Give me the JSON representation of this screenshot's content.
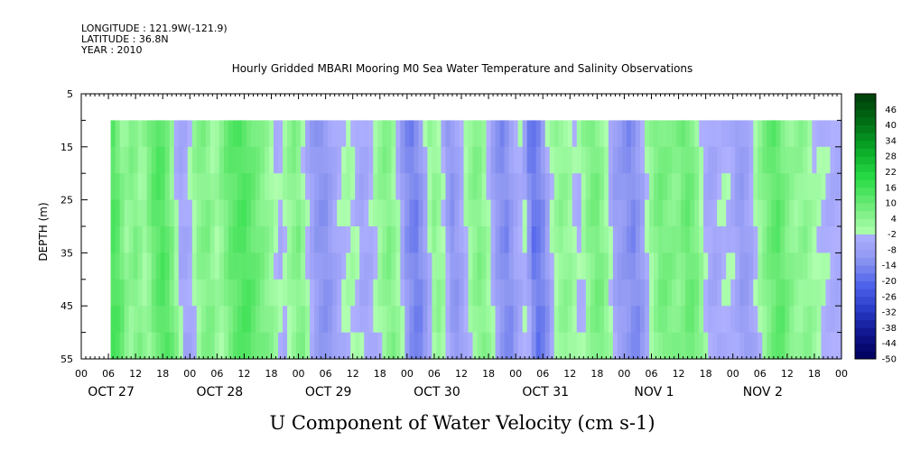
{
  "meta": {
    "longitude": "LONGITUDE : 121.9W(-121.9)",
    "latitude": "LATITUDE : 36.8N",
    "year": "YEAR : 2010"
  },
  "chart_data": {
    "type": "heatmap",
    "title": "Hourly Gridded MBARI Mooring M0 Sea Water Temperature and Salinity Observations",
    "xlabel": "U Component of Water Velocity (cm s-1)",
    "ylabel": "DEPTH (m)",
    "y_range": [
      5,
      55
    ],
    "y_ticks": [
      "5",
      "15",
      "25",
      "35",
      "45",
      "55"
    ],
    "y_inverted": true,
    "data_depth_range": [
      10,
      55
    ],
    "x_range_hours": [
      0,
      168
    ],
    "data_start_hour": 6.5,
    "hour_tick_labels": [
      "00",
      "06",
      "12",
      "18"
    ],
    "day_labels": [
      "OCT 27",
      "OCT 28",
      "OCT 29",
      "OCT 30",
      "OCT 31",
      "NOV  1",
      "NOV  2"
    ],
    "colorbar_ticks": [
      "46",
      "40",
      "34",
      "28",
      "22",
      "16",
      "10",
      "4",
      "-2",
      "-8",
      "-14",
      "-20",
      "-26",
      "-32",
      "-38",
      "-44",
      "-50"
    ],
    "colorbar_range": [
      -50,
      52
    ],
    "colorbar_step": 3,
    "time_series": [
      {
        "t": 6.5,
        "v": 14
      },
      {
        "t": 8,
        "v": 12
      },
      {
        "t": 10,
        "v": 2
      },
      {
        "t": 12,
        "v": 6
      },
      {
        "t": 14,
        "v": 0
      },
      {
        "t": 16,
        "v": 10
      },
      {
        "t": 18,
        "v": 14
      },
      {
        "t": 20,
        "v": 6
      },
      {
        "t": 22,
        "v": -6
      },
      {
        "t": 24,
        "v": -4
      },
      {
        "t": 26,
        "v": 4
      },
      {
        "t": 28,
        "v": 6
      },
      {
        "t": 30,
        "v": 0
      },
      {
        "t": 33,
        "v": 10
      },
      {
        "t": 36,
        "v": 14
      },
      {
        "t": 39,
        "v": 8
      },
      {
        "t": 42,
        "v": 2
      },
      {
        "t": 44,
        "v": -4
      },
      {
        "t": 46,
        "v": 2
      },
      {
        "t": 48,
        "v": 6
      },
      {
        "t": 50,
        "v": -2
      },
      {
        "t": 52,
        "v": -10
      },
      {
        "t": 54,
        "v": -12
      },
      {
        "t": 56,
        "v": -6
      },
      {
        "t": 58,
        "v": -2
      },
      {
        "t": 60,
        "v": 0
      },
      {
        "t": 62,
        "v": -6
      },
      {
        "t": 64,
        "v": -4
      },
      {
        "t": 66,
        "v": 2
      },
      {
        "t": 68,
        "v": 6
      },
      {
        "t": 70,
        "v": 0
      },
      {
        "t": 72,
        "v": -12
      },
      {
        "t": 74,
        "v": -16
      },
      {
        "t": 76,
        "v": -8
      },
      {
        "t": 78,
        "v": 4
      },
      {
        "t": 80,
        "v": 0
      },
      {
        "t": 82,
        "v": -12
      },
      {
        "t": 84,
        "v": -6
      },
      {
        "t": 86,
        "v": 2
      },
      {
        "t": 88,
        "v": 6
      },
      {
        "t": 90,
        "v": 0
      },
      {
        "t": 92,
        "v": -10
      },
      {
        "t": 94,
        "v": -14
      },
      {
        "t": 96,
        "v": -6
      },
      {
        "t": 98,
        "v": -2
      },
      {
        "t": 100,
        "v": -18
      },
      {
        "t": 102,
        "v": -14
      },
      {
        "t": 104,
        "v": -2
      },
      {
        "t": 106,
        "v": 4
      },
      {
        "t": 108,
        "v": 2
      },
      {
        "t": 110,
        "v": -4
      },
      {
        "t": 112,
        "v": 4
      },
      {
        "t": 114,
        "v": 8
      },
      {
        "t": 116,
        "v": 2
      },
      {
        "t": 118,
        "v": -8
      },
      {
        "t": 120,
        "v": -10
      },
      {
        "t": 122,
        "v": -14
      },
      {
        "t": 124,
        "v": -8
      },
      {
        "t": 126,
        "v": 2
      },
      {
        "t": 128,
        "v": 8
      },
      {
        "t": 130,
        "v": 6
      },
      {
        "t": 132,
        "v": 4
      },
      {
        "t": 134,
        "v": 10
      },
      {
        "t": 136,
        "v": 6
      },
      {
        "t": 138,
        "v": -4
      },
      {
        "t": 140,
        "v": -6
      },
      {
        "t": 142,
        "v": -2
      },
      {
        "t": 144,
        "v": -4
      },
      {
        "t": 146,
        "v": -10
      },
      {
        "t": 148,
        "v": -6
      },
      {
        "t": 150,
        "v": 2
      },
      {
        "t": 152,
        "v": 8
      },
      {
        "t": 154,
        "v": 12
      },
      {
        "t": 156,
        "v": 6
      },
      {
        "t": 158,
        "v": 2
      },
      {
        "t": 160,
        "v": 4
      },
      {
        "t": 162,
        "v": 0
      },
      {
        "t": 164,
        "v": -2
      },
      {
        "t": 166,
        "v": -4
      },
      {
        "t": 168,
        "v": -4
      }
    ]
  }
}
